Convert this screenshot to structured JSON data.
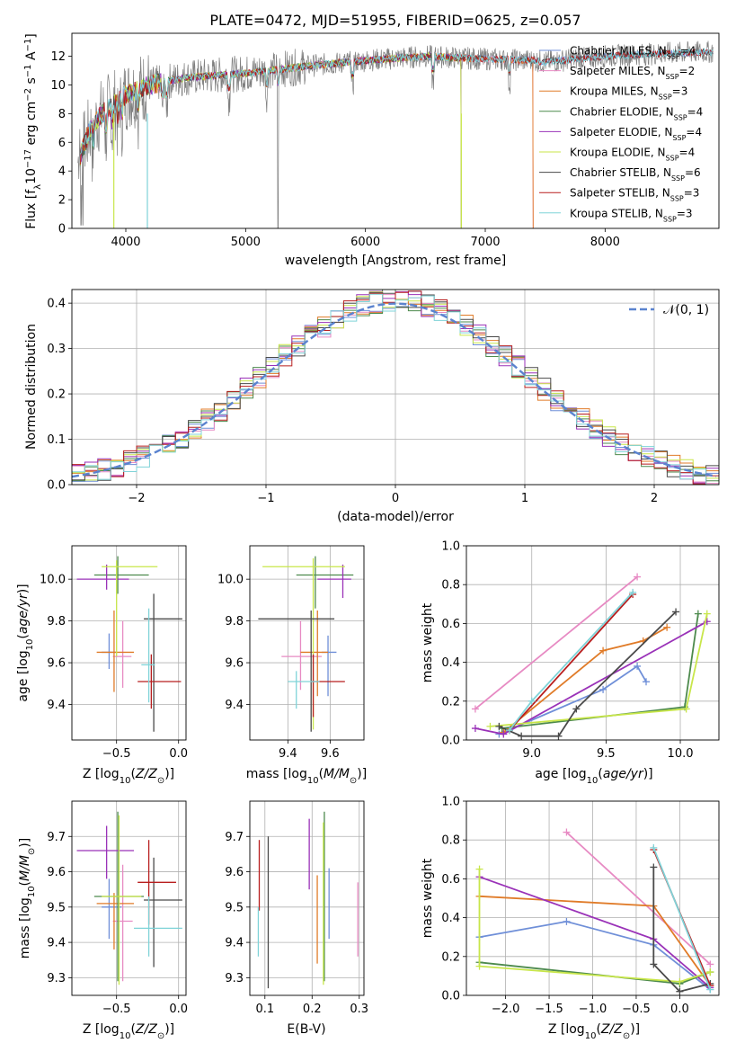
{
  "title": "PLATE=0472, MJD=51955, FIBERID=0625, z=0.057",
  "palette": {
    "Chabrier MILES": "#6f8fd8",
    "Salpeter MILES": "#e78ac3",
    "Kroupa MILES": "#e07b28",
    "Chabrier ELODIE": "#4d8a4d",
    "Salpeter ELODIE": "#9a32b8",
    "Kroupa ELODIE": "#c8e64a",
    "Chabrier STELIB": "#4a4a4a",
    "Salpeter STELIB": "#b81e1e",
    "Kroupa STELIB": "#7fd3d8",
    "data": "#7f7f7f"
  },
  "chart_data": [
    {
      "type": "line",
      "id": "spectrum",
      "xlabel": "wavelength [Angstrom, rest frame]",
      "ylabel": "Flux [f",
      "xlim": [
        3550,
        8950
      ],
      "ylim": [
        0,
        13.6
      ],
      "xticks": [
        4000,
        5000,
        6000,
        7000,
        8000
      ],
      "yticks": [
        0,
        2,
        4,
        6,
        8,
        10,
        12
      ],
      "legend_position": "right",
      "legend": [
        {
          "model": "Chabrier MILES",
          "n": "4"
        },
        {
          "model": "Salpeter MILES",
          "n": "2"
        },
        {
          "model": "Kroupa MILES",
          "n": "3"
        },
        {
          "model": "Chabrier ELODIE",
          "n": "4"
        },
        {
          "model": "Salpeter ELODIE",
          "n": "4"
        },
        {
          "model": "Kroupa ELODIE",
          "n": "4"
        },
        {
          "model": "Chabrier STELIB",
          "n": "6"
        },
        {
          "model": "Salpeter STELIB",
          "n": "3"
        },
        {
          "model": "Kroupa STELIB",
          "n": "3"
        }
      ],
      "continuum": [
        [
          3600,
          4.6
        ],
        [
          3700,
          6.8
        ],
        [
          3800,
          8.0
        ],
        [
          3900,
          8.6
        ],
        [
          4000,
          9.3
        ],
        [
          4200,
          10.0
        ],
        [
          4500,
          10.5
        ],
        [
          5000,
          10.8
        ],
        [
          5500,
          11.3
        ],
        [
          6000,
          11.7
        ],
        [
          6500,
          12.0
        ],
        [
          7000,
          11.8
        ],
        [
          7400,
          11.7
        ],
        [
          7500,
          11.6
        ],
        [
          8000,
          12.0
        ],
        [
          8500,
          12.2
        ],
        [
          8900,
          12.3
        ]
      ]
    },
    {
      "type": "line",
      "id": "residuals",
      "xlabel": "(data-model)/error",
      "ylabel": "Normed distribution",
      "xlim": [
        -2.5,
        2.5
      ],
      "ylim": [
        0,
        0.43
      ],
      "xticks": [
        -2,
        -1,
        0,
        1,
        2
      ],
      "yticks": [
        0.0,
        0.1,
        0.2,
        0.3,
        0.4
      ],
      "legend": "𝒩(0, 1)",
      "legend_position": "top-right",
      "gaussian": {
        "mu": 0,
        "sigma": 1
      }
    },
    {
      "type": "scatter",
      "id": "z-age",
      "xlabel": "Z [log",
      "ylabel": "age  [log",
      "xlim": [
        -0.86,
        0.06
      ],
      "ylim": [
        9.23,
        10.16
      ],
      "xticks": [
        -0.5,
        0.0
      ],
      "yticks": [
        9.4,
        9.6,
        9.8,
        10.0
      ],
      "points": [
        {
          "m": "Chabrier MILES",
          "x": -0.56,
          "y": 9.65,
          "xl": -0.62,
          "xh": -0.5,
          "yl": 9.57,
          "yh": 9.74
        },
        {
          "m": "Salpeter MILES",
          "x": -0.45,
          "y": 9.63,
          "xl": -0.53,
          "xh": -0.38,
          "yl": 9.48,
          "yh": 9.8
        },
        {
          "m": "Kroupa MILES",
          "x": -0.52,
          "y": 9.65,
          "xl": -0.66,
          "xh": -0.36,
          "yl": 9.46,
          "yh": 9.85
        },
        {
          "m": "Chabrier ELODIE",
          "x": -0.49,
          "y": 10.02,
          "xl": -0.68,
          "xh": -0.24,
          "yl": 9.93,
          "yh": 10.11
        },
        {
          "m": "Salpeter ELODIE",
          "x": -0.58,
          "y": 10.0,
          "xl": -0.82,
          "xh": -0.4,
          "yl": 9.95,
          "yh": 10.07
        },
        {
          "m": "Kroupa ELODIE",
          "x": -0.5,
          "y": 10.06,
          "xl": -0.62,
          "xh": -0.17,
          "yl": 9.63,
          "yh": 10.09
        },
        {
          "m": "Chabrier STELIB",
          "x": -0.2,
          "y": 9.81,
          "xl": -0.28,
          "xh": 0.03,
          "yl": 9.27,
          "yh": 9.93
        },
        {
          "m": "Salpeter STELIB",
          "x": -0.22,
          "y": 9.51,
          "xl": -0.33,
          "xh": 0.02,
          "yl": 9.38,
          "yh": 9.64
        },
        {
          "m": "Kroupa STELIB",
          "x": -0.24,
          "y": 9.59,
          "xl": -0.3,
          "xh": -0.19,
          "yl": 9.41,
          "yh": 9.86
        }
      ]
    },
    {
      "type": "scatter",
      "id": "mass-age",
      "xlabel": "mass [log",
      "ylabel": "",
      "xlim": [
        9.22,
        9.76
      ],
      "ylim": [
        9.23,
        10.16
      ],
      "xticks": [
        9.4,
        9.6
      ],
      "yticks": [
        9.4,
        9.6,
        9.8,
        10.0
      ],
      "points": [
        {
          "m": "Chabrier MILES",
          "x": 9.59,
          "y": 9.65,
          "xl": 9.56,
          "xh": 9.63,
          "yl": 9.44,
          "yh": 9.73
        },
        {
          "m": "Salpeter MILES",
          "x": 9.46,
          "y": 9.63,
          "xl": 9.37,
          "xh": 9.56,
          "yl": 9.47,
          "yh": 9.8
        },
        {
          "m": "Kroupa MILES",
          "x": 9.54,
          "y": 9.65,
          "xl": 9.46,
          "xh": 9.59,
          "yl": 9.44,
          "yh": 9.85
        },
        {
          "m": "Chabrier ELODIE",
          "x": 9.53,
          "y": 10.02,
          "xl": 9.44,
          "xh": 9.71,
          "yl": 9.86,
          "yh": 10.11
        },
        {
          "m": "Salpeter ELODIE",
          "x": 9.66,
          "y": 10.0,
          "xl": 9.54,
          "xh": 9.7,
          "yl": 9.91,
          "yh": 10.07
        },
        {
          "m": "Kroupa ELODIE",
          "x": 9.52,
          "y": 10.06,
          "xl": 9.28,
          "xh": 9.67,
          "yl": 9.28,
          "yh": 10.1
        },
        {
          "m": "Chabrier STELIB",
          "x": 9.51,
          "y": 9.81,
          "xl": 9.26,
          "xh": 9.62,
          "yl": 9.27,
          "yh": 9.85
        },
        {
          "m": "Salpeter STELIB",
          "x": 9.52,
          "y": 9.51,
          "xl": 9.51,
          "xh": 9.67,
          "yl": 9.34,
          "yh": 9.64
        },
        {
          "m": "Kroupa STELIB",
          "x": 9.44,
          "y": 9.51,
          "xl": 9.4,
          "xh": 9.55,
          "yl": 9.38,
          "yh": 9.56
        }
      ]
    },
    {
      "type": "line",
      "id": "age-weight",
      "xlabel": "age  [log",
      "ylabel": "mass weight",
      "xlim": [
        8.56,
        10.26
      ],
      "ylim": [
        0,
        1.0
      ],
      "xticks": [
        9.0,
        9.5,
        10.0
      ],
      "yticks": [
        0.0,
        0.2,
        0.4,
        0.6,
        0.8,
        1.0
      ],
      "series": [
        {
          "m": "Chabrier MILES",
          "points": [
            [
              8.78,
              0.03
            ],
            [
              9.48,
              0.26
            ],
            [
              9.71,
              0.38
            ],
            [
              9.77,
              0.3
            ]
          ]
        },
        {
          "m": "Salpeter MILES",
          "points": [
            [
              8.62,
              0.16
            ],
            [
              9.71,
              0.84
            ]
          ]
        },
        {
          "m": "Kroupa MILES",
          "points": [
            [
              8.81,
              0.04
            ],
            [
              9.48,
              0.46
            ],
            [
              9.75,
              0.51
            ],
            [
              9.91,
              0.58
            ]
          ]
        },
        {
          "m": "Chabrier ELODIE",
          "points": [
            [
              8.8,
              0.06
            ],
            [
              10.03,
              0.17
            ],
            [
              10.12,
              0.65
            ]
          ]
        },
        {
          "m": "Salpeter ELODIE",
          "points": [
            [
              8.62,
              0.06
            ],
            [
              8.81,
              0.03
            ],
            [
              10.18,
              0.61
            ]
          ]
        },
        {
          "m": "Kroupa ELODIE",
          "points": [
            [
              8.72,
              0.07
            ],
            [
              10.04,
              0.16
            ],
            [
              10.18,
              0.65
            ]
          ]
        },
        {
          "m": "Chabrier STELIB",
          "points": [
            [
              8.78,
              0.07
            ],
            [
              8.93,
              0.02
            ],
            [
              9.18,
              0.02
            ],
            [
              9.3,
              0.16
            ],
            [
              9.97,
              0.66
            ]
          ]
        },
        {
          "m": "Salpeter STELIB",
          "points": [
            [
              8.85,
              0.05
            ],
            [
              9.68,
              0.75
            ]
          ]
        },
        {
          "m": "Kroupa STELIB",
          "points": [
            [
              8.85,
              0.05
            ],
            [
              9.0,
              0.2
            ],
            [
              9.68,
              0.76
            ]
          ]
        }
      ]
    },
    {
      "type": "scatter",
      "id": "z-mass",
      "xlabel": "Z [log",
      "ylabel": "mass [log",
      "xlim": [
        -0.86,
        0.06
      ],
      "ylim": [
        9.25,
        9.8
      ],
      "xticks": [
        -0.5,
        0.0
      ],
      "yticks": [
        9.3,
        9.4,
        9.5,
        9.6,
        9.7
      ],
      "points": [
        {
          "m": "Chabrier MILES",
          "x": -0.56,
          "y": 9.5,
          "xl": -0.62,
          "xh": -0.46,
          "yl": 9.41,
          "yh": 9.58
        },
        {
          "m": "Salpeter MILES",
          "x": -0.45,
          "y": 9.46,
          "xl": -0.53,
          "xh": -0.37,
          "yl": 9.29,
          "yh": 9.62
        },
        {
          "m": "Kroupa MILES",
          "x": -0.52,
          "y": 9.51,
          "xl": -0.66,
          "xh": -0.36,
          "yl": 9.38,
          "yh": 9.54
        },
        {
          "m": "Chabrier ELODIE",
          "x": -0.49,
          "y": 9.53,
          "xl": -0.68,
          "xh": -0.28,
          "yl": 9.29,
          "yh": 9.77
        },
        {
          "m": "Salpeter ELODIE",
          "x": -0.58,
          "y": 9.66,
          "xl": -0.82,
          "xh": -0.36,
          "yl": 9.58,
          "yh": 9.73
        },
        {
          "m": "Kroupa ELODIE",
          "x": -0.48,
          "y": 9.53,
          "xl": -0.62,
          "xh": -0.3,
          "yl": 9.28,
          "yh": 9.76
        },
        {
          "m": "Chabrier STELIB",
          "x": -0.2,
          "y": 9.52,
          "xl": -0.28,
          "xh": 0.03,
          "yl": 9.33,
          "yh": 9.64
        },
        {
          "m": "Salpeter STELIB",
          "x": -0.24,
          "y": 9.57,
          "xl": -0.33,
          "xh": -0.02,
          "yl": 9.45,
          "yh": 9.69
        },
        {
          "m": "Kroupa STELIB",
          "x": -0.24,
          "y": 9.44,
          "xl": -0.36,
          "xh": 0.03,
          "yl": 9.36,
          "yh": 9.53
        }
      ]
    },
    {
      "type": "scatter",
      "id": "ebv-mass",
      "xlabel": "E(B-V)",
      "ylabel": "",
      "xlim": [
        0.068,
        0.31
      ],
      "ylim": [
        9.25,
        9.8
      ],
      "xticks": [
        0.1,
        0.2,
        0.3
      ],
      "yticks": [
        9.3,
        9.4,
        9.5,
        9.6,
        9.7
      ],
      "points": [
        {
          "m": "Chabrier MILES",
          "x": 0.236,
          "y": 9.5,
          "yl": 9.41,
          "yh": 9.61
        },
        {
          "m": "Salpeter MILES",
          "x": 0.297,
          "y": 9.46,
          "yl": 9.36,
          "yh": 9.57
        },
        {
          "m": "Kroupa MILES",
          "x": 0.211,
          "y": 9.51,
          "yl": 9.34,
          "yh": 9.59
        },
        {
          "m": "Chabrier ELODIE",
          "x": 0.226,
          "y": 9.53,
          "yl": 9.29,
          "yh": 9.77
        },
        {
          "m": "Salpeter ELODIE",
          "x": 0.194,
          "y": 9.66,
          "yl": 9.55,
          "yh": 9.75
        },
        {
          "m": "Kroupa ELODIE",
          "x": 0.224,
          "y": 9.53,
          "yl": 9.28,
          "yh": 9.74
        },
        {
          "m": "Chabrier STELIB",
          "x": 0.107,
          "y": 9.52,
          "yl": 9.27,
          "yh": 9.7
        },
        {
          "m": "Salpeter STELIB",
          "x": 0.088,
          "y": 9.57,
          "yl": 9.49,
          "yh": 9.69
        },
        {
          "m": "Kroupa STELIB",
          "x": 0.086,
          "y": 9.44,
          "yl": 9.36,
          "yh": 9.5
        }
      ]
    },
    {
      "type": "line",
      "id": "z-weight",
      "xlabel": "Z [log",
      "ylabel": "mass weight",
      "xlim": [
        -2.45,
        0.45
      ],
      "ylim": [
        0,
        1.0
      ],
      "xticks": [
        -2.0,
        -1.5,
        -1.0,
        -0.5,
        0.0
      ],
      "yticks": [
        0.0,
        0.2,
        0.4,
        0.6,
        0.8,
        1.0
      ],
      "series": [
        {
          "m": "Chabrier MILES",
          "points": [
            [
              -2.3,
              0.3
            ],
            [
              -1.3,
              0.38
            ],
            [
              -0.3,
              0.26
            ],
            [
              0.35,
              0.03
            ]
          ]
        },
        {
          "m": "Salpeter MILES",
          "points": [
            [
              -1.3,
              0.84
            ],
            [
              0.35,
              0.16
            ]
          ]
        },
        {
          "m": "Kroupa MILES",
          "points": [
            [
              -2.3,
              0.51
            ],
            [
              -0.3,
              0.46
            ],
            [
              0.35,
              0.05
            ]
          ]
        },
        {
          "m": "Chabrier ELODIE",
          "points": [
            [
              -2.3,
              0.17
            ],
            [
              0.0,
              0.06
            ],
            [
              0.35,
              0.12
            ]
          ]
        },
        {
          "m": "Salpeter ELODIE",
          "points": [
            [
              -2.3,
              0.61
            ],
            [
              -0.3,
              0.29
            ],
            [
              0.35,
              0.04
            ]
          ]
        },
        {
          "m": "Kroupa ELODIE",
          "points": [
            [
              -2.3,
              0.65
            ],
            [
              -2.3,
              0.15
            ],
            [
              0.0,
              0.07
            ],
            [
              0.35,
              0.12
            ]
          ]
        },
        {
          "m": "Chabrier STELIB",
          "points": [
            [
              -0.3,
              0.66
            ],
            [
              -0.3,
              0.16
            ],
            [
              0.0,
              0.02
            ],
            [
              0.35,
              0.06
            ]
          ]
        },
        {
          "m": "Salpeter STELIB",
          "points": [
            [
              -0.3,
              0.75
            ],
            [
              0.35,
              0.05
            ]
          ]
        },
        {
          "m": "Kroupa STELIB",
          "points": [
            [
              -0.3,
              0.76
            ],
            [
              0.35,
              0.03
            ]
          ]
        }
      ]
    }
  ]
}
